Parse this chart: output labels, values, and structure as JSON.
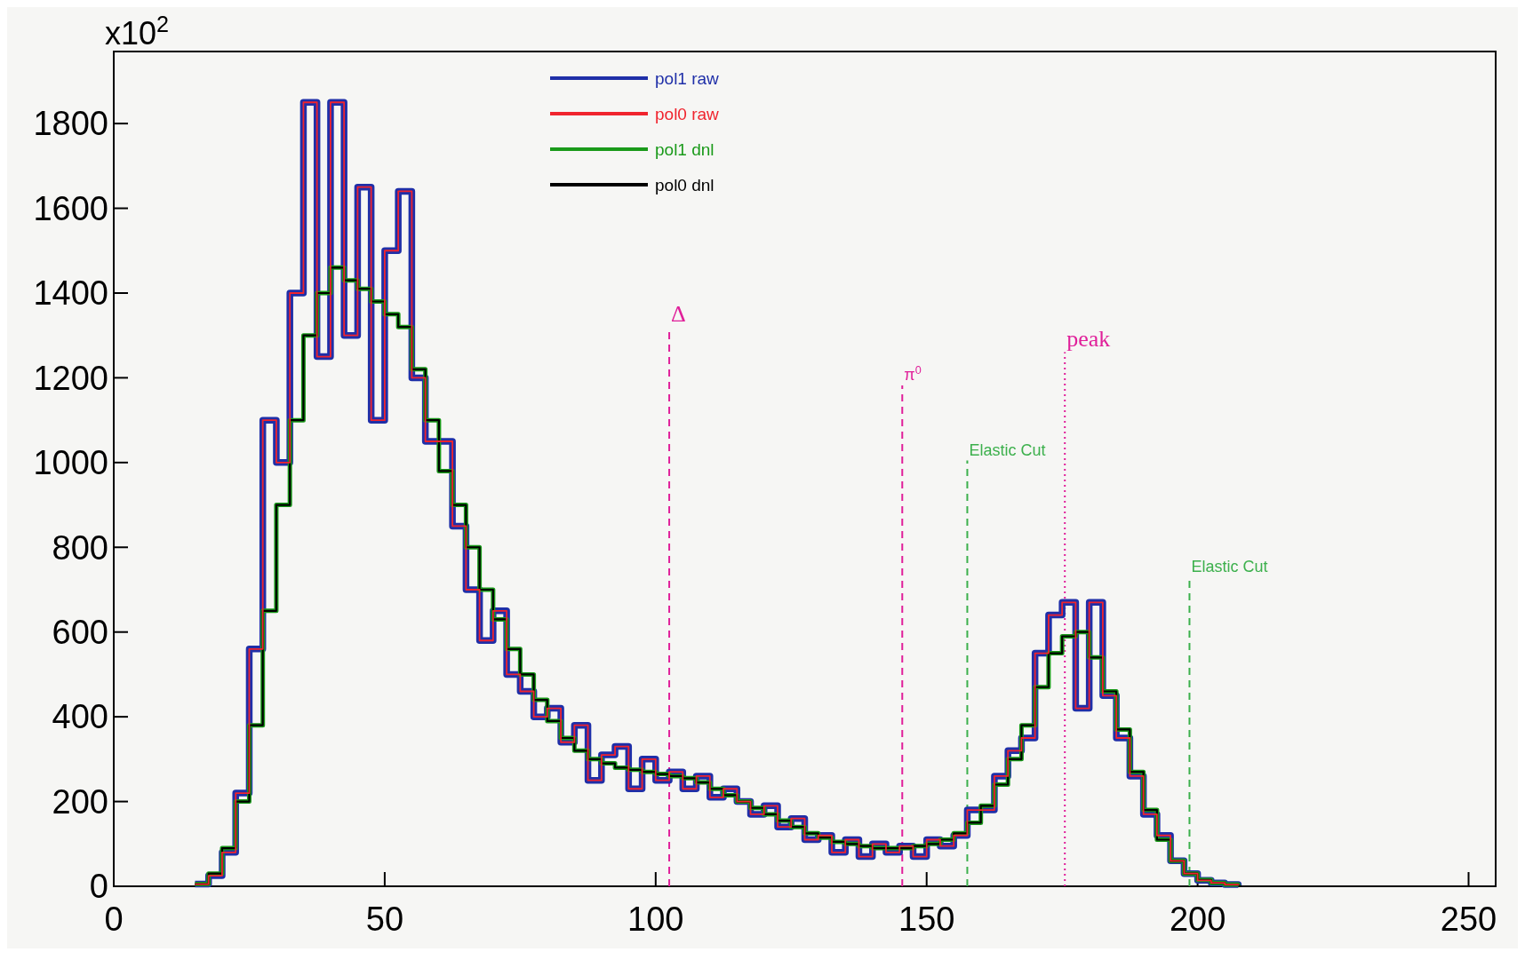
{
  "chart_data": {
    "type": "step",
    "annotations": [
      "x10$^{2}$"
    ],
    "x": [
      15,
      17.5,
      20,
      22.5,
      25,
      27.5,
      30,
      32.5,
      35,
      37.5,
      40,
      42.5,
      45,
      47.5,
      50,
      52.5,
      55,
      57.5,
      60,
      62.5,
      65,
      67.5,
      70,
      72.5,
      75,
      77.5,
      80,
      82.5,
      85,
      87.5,
      90,
      92.5,
      95,
      97.5,
      100,
      102.5,
      105,
      107.5,
      110,
      112.5,
      115,
      117.5,
      120,
      122.5,
      125,
      127.5,
      130,
      132.5,
      135,
      137.5,
      140,
      142.5,
      145,
      147.5,
      150,
      152.5,
      155,
      157.5,
      160,
      162.5,
      165,
      167.5,
      170,
      172.5,
      175,
      177.5,
      180,
      182.5,
      185,
      187.5,
      190,
      192.5,
      195,
      197.5,
      200,
      202.5,
      205,
      207.5
    ],
    "series": [
      {
        "name": "pol1 raw",
        "color": "#1f2fa8",
        "values": [
          5,
          25,
          80,
          220,
          560,
          1100,
          1000,
          1400,
          1850,
          1250,
          1850,
          1300,
          1650,
          1100,
          1500,
          1640,
          1200,
          1050,
          1050,
          850,
          700,
          580,
          650,
          500,
          460,
          400,
          420,
          340,
          380,
          250,
          310,
          330,
          230,
          300,
          250,
          270,
          230,
          260,
          210,
          230,
          200,
          170,
          190,
          140,
          160,
          110,
          120,
          80,
          110,
          70,
          100,
          80,
          95,
          70,
          110,
          95,
          120,
          180,
          180,
          260,
          320,
          350,
          550,
          640,
          670,
          420,
          670,
          450,
          350,
          260,
          170,
          120,
          60,
          30,
          14,
          8,
          4,
          2
        ]
      },
      {
        "name": "pol0 raw",
        "color": "#f0242e",
        "values": [
          5,
          25,
          80,
          220,
          560,
          1100,
          1000,
          1400,
          1850,
          1250,
          1850,
          1300,
          1650,
          1100,
          1500,
          1640,
          1200,
          1050,
          1050,
          850,
          700,
          580,
          650,
          500,
          460,
          400,
          420,
          340,
          380,
          250,
          310,
          330,
          230,
          300,
          250,
          270,
          230,
          260,
          210,
          230,
          200,
          170,
          190,
          140,
          160,
          110,
          120,
          80,
          110,
          70,
          100,
          80,
          95,
          70,
          110,
          95,
          120,
          180,
          180,
          260,
          320,
          350,
          550,
          640,
          670,
          420,
          670,
          450,
          350,
          260,
          170,
          120,
          60,
          30,
          14,
          8,
          4,
          2
        ]
      },
      {
        "name": "pol1 dnl",
        "color": "#1a9a1a",
        "values": [
          5,
          30,
          90,
          200,
          380,
          650,
          900,
          1100,
          1300,
          1400,
          1460,
          1430,
          1410,
          1380,
          1350,
          1320,
          1220,
          1100,
          980,
          900,
          800,
          700,
          630,
          560,
          500,
          440,
          390,
          350,
          320,
          300,
          290,
          280,
          275,
          270,
          265,
          260,
          255,
          245,
          230,
          215,
          200,
          185,
          170,
          155,
          140,
          125,
          115,
          105,
          100,
          95,
          90,
          90,
          90,
          95,
          100,
          110,
          125,
          150,
          190,
          240,
          300,
          380,
          470,
          550,
          590,
          600,
          540,
          460,
          370,
          270,
          180,
          110,
          60,
          30,
          15,
          8,
          4,
          2
        ]
      },
      {
        "name": "pol0 dnl",
        "color": "#000000",
        "values": [
          5,
          30,
          90,
          200,
          380,
          650,
          900,
          1100,
          1300,
          1400,
          1460,
          1430,
          1410,
          1380,
          1350,
          1320,
          1220,
          1100,
          980,
          900,
          800,
          700,
          630,
          560,
          500,
          440,
          390,
          350,
          320,
          300,
          290,
          280,
          275,
          270,
          265,
          260,
          255,
          245,
          230,
          215,
          200,
          185,
          170,
          155,
          140,
          125,
          115,
          105,
          100,
          95,
          90,
          90,
          90,
          95,
          100,
          110,
          125,
          150,
          190,
          240,
          300,
          380,
          470,
          550,
          590,
          600,
          540,
          460,
          370,
          270,
          180,
          110,
          60,
          30,
          15,
          8,
          4,
          2
        ]
      }
    ],
    "xlim": [
      0,
      255
    ],
    "ylim": [
      0,
      1970
    ],
    "xticks": [
      0,
      50,
      100,
      150,
      200,
      250
    ],
    "yticks": [
      0,
      200,
      400,
      600,
      800,
      1000,
      1200,
      1400,
      1600,
      1800
    ],
    "ref_lines": [
      {
        "axis": "x",
        "value": 102.5,
        "label": "Δ",
        "color": "#e0209a",
        "line_style": "dashed"
      },
      {
        "axis": "x",
        "value": 145.5,
        "label": "π$^{0}$",
        "color": "#e0209a",
        "line_style": "dashed"
      },
      {
        "axis": "x",
        "value": 157.5,
        "label": "Elastic Cut",
        "color": "#3cb04c",
        "line_style": "dashed"
      },
      {
        "axis": "x",
        "value": 175.5,
        "label": "peak",
        "color": "#e0209a",
        "line_style": "dotted"
      },
      {
        "axis": "x",
        "value": 198.5,
        "label": "Elastic Cut",
        "color": "#3cb04c",
        "line_style": "dashed"
      }
    ],
    "legend": "top",
    "grid": false
  }
}
